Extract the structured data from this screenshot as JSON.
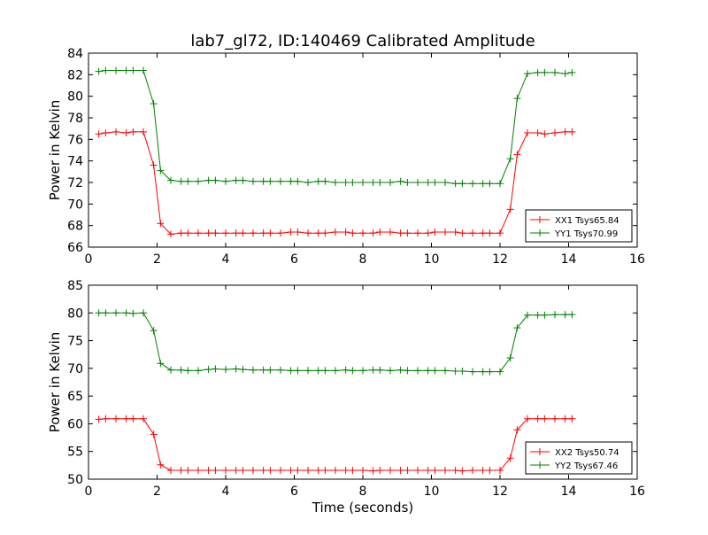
{
  "figure": {
    "title": "lab7_gl72, ID:140469 Calibrated Amplitude",
    "xlabel": "Time (seconds)"
  },
  "chart_data": [
    {
      "type": "line",
      "title": "lab7_gl72, ID:140469 Calibrated Amplitude",
      "xlabel": "",
      "ylabel": "Power in Kelvin",
      "xlim": [
        0,
        16
      ],
      "ylim": [
        66,
        84
      ],
      "xticks": [
        0,
        2,
        4,
        6,
        8,
        10,
        12,
        14,
        16
      ],
      "yticks": [
        66,
        68,
        70,
        72,
        74,
        76,
        78,
        80,
        82,
        84
      ],
      "legend_position": "lower-right",
      "x": [
        0.3,
        0.5,
        0.8,
        1.1,
        1.3,
        1.6,
        1.9,
        2.1,
        2.4,
        2.7,
        2.9,
        3.2,
        3.5,
        3.7,
        4.0,
        4.3,
        4.5,
        4.8,
        5.1,
        5.3,
        5.6,
        5.9,
        6.1,
        6.4,
        6.7,
        6.9,
        7.2,
        7.5,
        7.7,
        8.0,
        8.3,
        8.5,
        8.8,
        9.1,
        9.3,
        9.6,
        9.9,
        10.1,
        10.4,
        10.7,
        10.9,
        11.2,
        11.5,
        11.7,
        12.0,
        12.3,
        12.5,
        12.8,
        13.1,
        13.3,
        13.6,
        13.9,
        14.1
      ],
      "series": [
        {
          "name": "XX1 Tsys65.84",
          "color": "#ff0000",
          "values": [
            76.5,
            76.6,
            76.7,
            76.6,
            76.7,
            76.7,
            73.6,
            68.2,
            67.2,
            67.3,
            67.3,
            67.3,
            67.3,
            67.3,
            67.3,
            67.3,
            67.3,
            67.3,
            67.3,
            67.3,
            67.3,
            67.4,
            67.4,
            67.3,
            67.3,
            67.3,
            67.4,
            67.4,
            67.3,
            67.3,
            67.3,
            67.4,
            67.4,
            67.3,
            67.3,
            67.3,
            67.3,
            67.4,
            67.4,
            67.4,
            67.3,
            67.3,
            67.3,
            67.3,
            67.3,
            69.5,
            74.6,
            76.6,
            76.6,
            76.5,
            76.6,
            76.7,
            76.7
          ]
        },
        {
          "name": "YY1 Tsys70.99",
          "color": "#008000",
          "values": [
            82.3,
            82.4,
            82.4,
            82.4,
            82.4,
            82.4,
            79.3,
            73.1,
            72.2,
            72.1,
            72.1,
            72.1,
            72.2,
            72.2,
            72.1,
            72.2,
            72.2,
            72.1,
            72.1,
            72.1,
            72.1,
            72.1,
            72.1,
            72.0,
            72.1,
            72.1,
            72.0,
            72.0,
            72.0,
            72.0,
            72.0,
            72.0,
            72.0,
            72.1,
            72.0,
            72.0,
            72.0,
            72.0,
            72.0,
            71.9,
            71.9,
            71.9,
            71.9,
            71.9,
            71.9,
            74.2,
            79.8,
            82.1,
            82.2,
            82.2,
            82.2,
            82.1,
            82.2
          ]
        }
      ]
    },
    {
      "type": "line",
      "title": "",
      "xlabel": "Time (seconds)",
      "ylabel": "Power in Kelvin",
      "xlim": [
        0,
        16
      ],
      "ylim": [
        50,
        85
      ],
      "xticks": [
        0,
        2,
        4,
        6,
        8,
        10,
        12,
        14,
        16
      ],
      "yticks": [
        50,
        55,
        60,
        65,
        70,
        75,
        80,
        85
      ],
      "legend_position": "lower-right",
      "x": [
        0.3,
        0.5,
        0.8,
        1.1,
        1.3,
        1.6,
        1.9,
        2.1,
        2.4,
        2.7,
        2.9,
        3.2,
        3.5,
        3.7,
        4.0,
        4.3,
        4.5,
        4.8,
        5.1,
        5.3,
        5.6,
        5.9,
        6.1,
        6.4,
        6.7,
        6.9,
        7.2,
        7.5,
        7.7,
        8.0,
        8.3,
        8.5,
        8.8,
        9.1,
        9.3,
        9.6,
        9.9,
        10.1,
        10.4,
        10.7,
        10.9,
        11.2,
        11.5,
        11.7,
        12.0,
        12.3,
        12.5,
        12.8,
        13.1,
        13.3,
        13.6,
        13.9,
        14.1
      ],
      "series": [
        {
          "name": "XX2 Tsys50.74",
          "color": "#ff0000",
          "values": [
            60.8,
            60.9,
            60.9,
            60.9,
            60.9,
            60.9,
            58.1,
            52.6,
            51.6,
            51.6,
            51.6,
            51.6,
            51.6,
            51.6,
            51.6,
            51.6,
            51.6,
            51.6,
            51.6,
            51.6,
            51.6,
            51.6,
            51.6,
            51.6,
            51.6,
            51.6,
            51.6,
            51.6,
            51.6,
            51.6,
            51.5,
            51.6,
            51.6,
            51.6,
            51.6,
            51.6,
            51.6,
            51.6,
            51.6,
            51.6,
            51.5,
            51.6,
            51.6,
            51.6,
            51.6,
            53.8,
            58.9,
            60.9,
            60.9,
            60.9,
            60.9,
            60.9,
            60.9
          ]
        },
        {
          "name": "YY2 Tsys67.46",
          "color": "#008000",
          "values": [
            80.0,
            80.0,
            80.0,
            80.0,
            79.9,
            80.0,
            76.8,
            70.9,
            69.7,
            69.7,
            69.6,
            69.6,
            69.8,
            69.9,
            69.8,
            69.9,
            69.8,
            69.7,
            69.7,
            69.7,
            69.7,
            69.6,
            69.6,
            69.6,
            69.6,
            69.6,
            69.6,
            69.7,
            69.6,
            69.6,
            69.7,
            69.7,
            69.6,
            69.7,
            69.6,
            69.6,
            69.6,
            69.6,
            69.6,
            69.5,
            69.5,
            69.4,
            69.4,
            69.4,
            69.4,
            71.9,
            77.3,
            79.6,
            79.6,
            79.6,
            79.7,
            79.7,
            79.7
          ]
        }
      ]
    }
  ]
}
